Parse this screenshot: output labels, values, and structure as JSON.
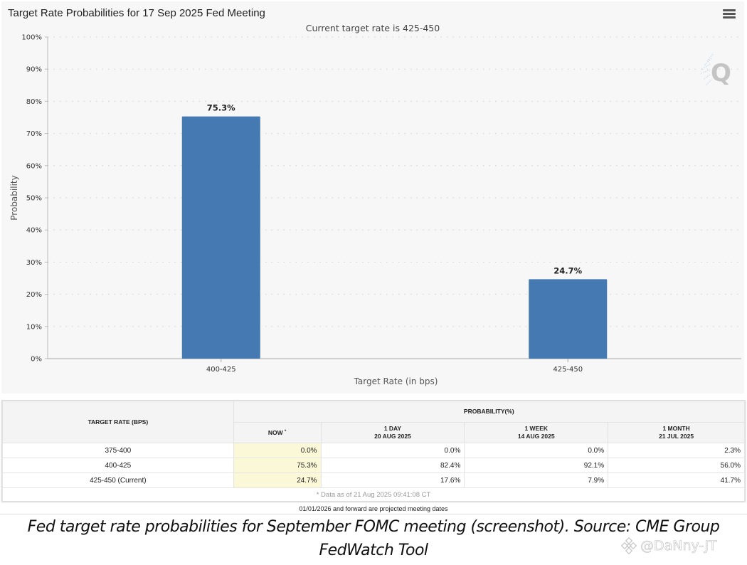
{
  "chart": {
    "title": "Target Rate Probabilities for 17 Sep 2025 Fed Meeting",
    "subtitle": "Current target rate is 425-450",
    "menu_icon": "hamburger-menu-icon",
    "watermark_icon": "q-logo-icon"
  },
  "chart_data": {
    "type": "bar",
    "title": "Target Rate Probabilities for 17 Sep 2025 Fed Meeting",
    "subtitle": "Current target rate is 425-450",
    "categories": [
      "400-425",
      "425-450"
    ],
    "values": [
      75.3,
      24.7
    ],
    "data_labels": [
      "75.3%",
      "24.7%"
    ],
    "xlabel": "Target Rate (in bps)",
    "ylabel": "Probability",
    "ylim": [
      0,
      100
    ],
    "yticks": [
      0,
      10,
      20,
      30,
      40,
      50,
      60,
      70,
      80,
      90,
      100
    ],
    "ytick_labels": [
      "0%",
      "10%",
      "20%",
      "30%",
      "40%",
      "50%",
      "60%",
      "70%",
      "80%",
      "90%",
      "100%"
    ],
    "grid": true,
    "bar_color": "#4479b2",
    "legend": "none"
  },
  "table": {
    "col_rate_header": "TARGET RATE (BPS)",
    "group_header": "PROBABILITY(%)",
    "columns": [
      {
        "label": "NOW",
        "sub": "",
        "star": "*"
      },
      {
        "label": "1 DAY",
        "sub": "20 AUG 2025"
      },
      {
        "label": "1 WEEK",
        "sub": "14 AUG 2025"
      },
      {
        "label": "1 MONTH",
        "sub": "21 JUL 2025"
      }
    ],
    "rows": [
      {
        "rate": "375-400",
        "values": [
          "0.0%",
          "0.0%",
          "0.0%",
          "2.3%"
        ]
      },
      {
        "rate": "400-425",
        "values": [
          "75.3%",
          "82.4%",
          "92.1%",
          "56.0%"
        ]
      },
      {
        "rate": "425-450 (Current)",
        "values": [
          "24.7%",
          "17.6%",
          "7.9%",
          "41.7%"
        ]
      }
    ],
    "note": "* Data as of 21 Aug 2025 09:41:08 CT",
    "highlight_color": "#fbf8d8"
  },
  "projected_note": "01/01/2026 and forward are projected meeting dates",
  "caption": {
    "line1": "Fed target rate probabilities for September FOMC meeting (screenshot). Source: CME Group",
    "line2": "FedWatch Tool"
  },
  "credit": {
    "handle": "@DaNny-JT",
    "icon": "binance-logo-icon"
  }
}
